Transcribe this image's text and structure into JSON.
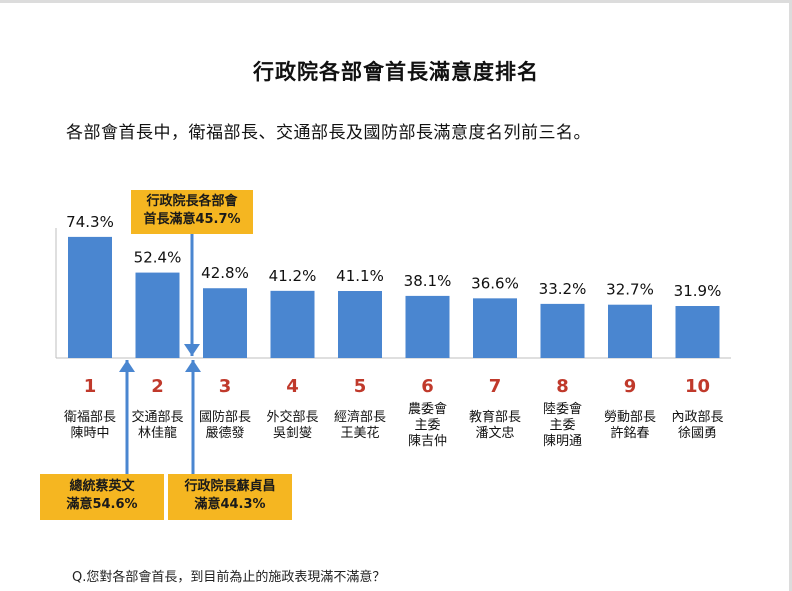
{
  "title": "行政院各部會首長滿意度排名",
  "subtitle": "各部會首長中，衛福部長、交通部長及國防部長滿意度名列前三名。",
  "question": "Q.您對各部會首長，到目前為止的施政表現滿不滿意？",
  "colors": {
    "bar": "#4a86d0",
    "rank": "#c0392b",
    "callout": "#f5b621",
    "arrow": "#4a86d0"
  },
  "chart_data": {
    "type": "bar",
    "value_suffix": "%",
    "ylim": [
      0,
      80
    ],
    "ranks": [
      "1",
      "2",
      "3",
      "4",
      "5",
      "6",
      "7",
      "8",
      "9",
      "10"
    ],
    "categories": [
      [
        "衛福部長",
        "陳時中"
      ],
      [
        "交通部長",
        "林佳龍"
      ],
      [
        "國防部長",
        "嚴德發"
      ],
      [
        "外交部長",
        "吳釗燮"
      ],
      [
        "經濟部長",
        "王美花"
      ],
      [
        "農委會",
        "主委",
        "陳吉仲"
      ],
      [
        "教育部長",
        "潘文忠"
      ],
      [
        "陸委會",
        "主委",
        "陳明通"
      ],
      [
        "勞動部長",
        "許銘春"
      ],
      [
        "內政部長",
        "徐國勇"
      ]
    ],
    "values": [
      74.3,
      52.4,
      42.8,
      41.2,
      41.1,
      38.1,
      36.6,
      33.2,
      32.7,
      31.9
    ],
    "value_labels": [
      "74.3%",
      "52.4%",
      "42.8%",
      "41.2%",
      "41.1%",
      "38.1%",
      "36.6%",
      "33.2%",
      "32.7%",
      "31.9%"
    ],
    "reference_lines": [
      {
        "label_lines": [
          "行政院長各部會",
          "首長滿意45.7%"
        ],
        "value": 45.7,
        "between": [
          2,
          3
        ],
        "direction": "down"
      },
      {
        "label_lines": [
          "總統蔡英文",
          "滿意54.6%"
        ],
        "value": 54.6,
        "between": [
          1,
          2
        ],
        "direction": "up"
      },
      {
        "label_lines": [
          "行政院長蘇貞昌",
          "滿意44.3%"
        ],
        "value": 44.3,
        "between": [
          2,
          3
        ],
        "direction": "up"
      }
    ]
  }
}
